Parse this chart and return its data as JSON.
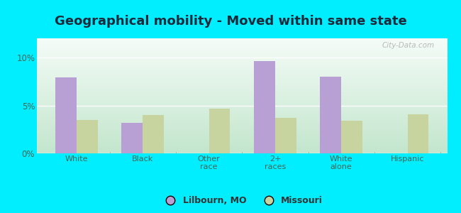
{
  "title": "Geographical mobility - Moved within same state",
  "categories": [
    "White",
    "Black",
    "Other\nrace",
    "2+\nraces",
    "White\nalone",
    "Hispanic"
  ],
  "lilbourn_values": [
    7.9,
    3.2,
    0,
    9.6,
    8.0,
    0
  ],
  "missouri_values": [
    3.5,
    4.0,
    4.7,
    3.7,
    3.4,
    4.1
  ],
  "bar_color_lilbourn": "#b89fd4",
  "bar_color_missouri": "#c8d49f",
  "background_outer": "#00eeff",
  "ylim": [
    0,
    12
  ],
  "yticks": [
    0,
    5,
    10
  ],
  "ytick_labels": [
    "0%",
    "5%",
    "10%"
  ],
  "legend_label1": "Lilbourn, MO",
  "legend_label2": "Missouri",
  "watermark": "City-Data.com",
  "title_fontsize": 13,
  "title_color": "#1a2a3a",
  "bar_width": 0.32
}
